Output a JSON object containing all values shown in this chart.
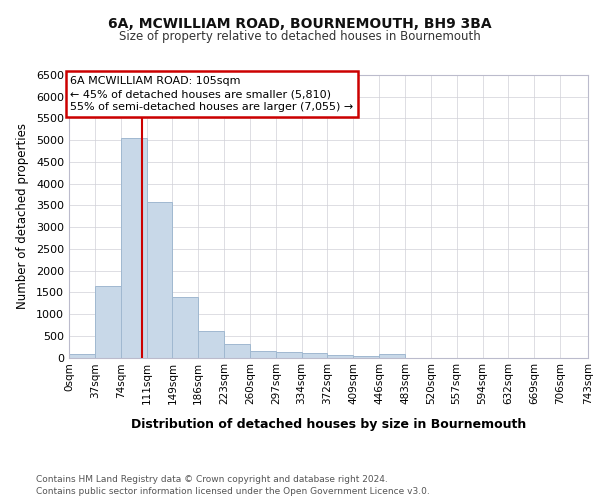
{
  "title": "6A, MCWILLIAM ROAD, BOURNEMOUTH, BH9 3BA",
  "subtitle": "Size of property relative to detached houses in Bournemouth",
  "xlabel": "Distribution of detached houses by size in Bournemouth",
  "ylabel": "Number of detached properties",
  "footnote1": "Contains HM Land Registry data © Crown copyright and database right 2024.",
  "footnote2": "Contains public sector information licensed under the Open Government Licence v3.0.",
  "bin_edges": [
    0,
    37,
    74,
    111,
    148,
    185,
    222,
    259,
    296,
    333,
    370,
    407,
    444,
    481,
    518,
    555,
    592,
    629,
    666,
    703,
    743
  ],
  "bin_labels": [
    "0sqm",
    "37sqm",
    "74sqm",
    "111sqm",
    "149sqm",
    "186sqm",
    "223sqm",
    "260sqm",
    "297sqm",
    "334sqm",
    "372sqm",
    "409sqm",
    "446sqm",
    "483sqm",
    "520sqm",
    "557sqm",
    "594sqm",
    "632sqm",
    "669sqm",
    "706sqm",
    "743sqm"
  ],
  "bar_heights": [
    75,
    1650,
    5050,
    3580,
    1400,
    620,
    300,
    155,
    130,
    100,
    50,
    40,
    75,
    0,
    0,
    0,
    0,
    0,
    0,
    0
  ],
  "bar_color": "#c8d8e8",
  "bar_edgecolor": "#a0b8d0",
  "red_line_x": 105,
  "red_line_color": "#cc0000",
  "ylim": [
    0,
    6500
  ],
  "yticks": [
    0,
    500,
    1000,
    1500,
    2000,
    2500,
    3000,
    3500,
    4000,
    4500,
    5000,
    5500,
    6000,
    6500
  ],
  "annotation_text": "6A MCWILLIAM ROAD: 105sqm\n← 45% of detached houses are smaller (5,810)\n55% of semi-detached houses are larger (7,055) →",
  "annotation_box_color": "#ffffff",
  "annotation_box_edgecolor": "#cc0000",
  "background_color": "#ffffff",
  "grid_color": "#d0d0d8"
}
